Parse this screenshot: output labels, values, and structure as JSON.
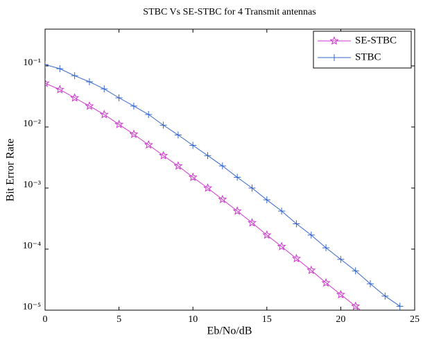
{
  "chart_data": {
    "type": "line",
    "title": "STBC Vs  SE-STBC for 4 Transmit antennas",
    "x_label": "Eb/No/dB",
    "y_label": "Bit Error Rate",
    "x": [
      0,
      1,
      2,
      3,
      4,
      5,
      6,
      7,
      8,
      9,
      10,
      11,
      12,
      13,
      14,
      15,
      16,
      17,
      18,
      19,
      20,
      21,
      22,
      23,
      24
    ],
    "series": [
      {
        "name": "SE-STBC",
        "color": "#cc33cc",
        "marker": "star",
        "values": [
          0.052,
          0.041,
          0.03,
          0.022,
          0.016,
          0.011,
          0.0076,
          0.0051,
          0.0034,
          0.0023,
          0.0015,
          0.001,
          0.00065,
          0.00042,
          0.00027,
          0.00017,
          0.00011,
          7e-05,
          4.5e-05,
          2.8e-05,
          1.8e-05,
          1.16e-05,
          7.5e-06,
          null,
          null
        ]
      },
      {
        "name": "STBC",
        "color": "#3366cc",
        "marker": "plus",
        "values": [
          0.105,
          0.09,
          0.069,
          0.055,
          0.042,
          0.03,
          0.022,
          0.016,
          0.0107,
          0.0074,
          0.005,
          0.0034,
          0.0023,
          0.0015,
          0.001,
          0.00064,
          0.00042,
          0.00026,
          0.00017,
          0.000105,
          6.8e-05,
          4.4e-05,
          2.7e-05,
          1.7e-05,
          1.16e-05
        ]
      }
    ],
    "xlim": [
      0,
      25
    ],
    "xticks": [
      0,
      5,
      10,
      15,
      20,
      25
    ],
    "ylim": [
      1e-05,
      0.4
    ],
    "ylog": true,
    "yticks": [
      {
        "value": 1e-05,
        "label": "10⁻⁵"
      },
      {
        "value": 0.0001,
        "label": "10⁻⁴"
      },
      {
        "value": 0.001,
        "label": "10⁻³"
      },
      {
        "value": 0.01,
        "label": "10⁻²"
      },
      {
        "value": 0.1,
        "label": "10⁻¹"
      }
    ],
    "grid": false,
    "legend": "top-right"
  }
}
